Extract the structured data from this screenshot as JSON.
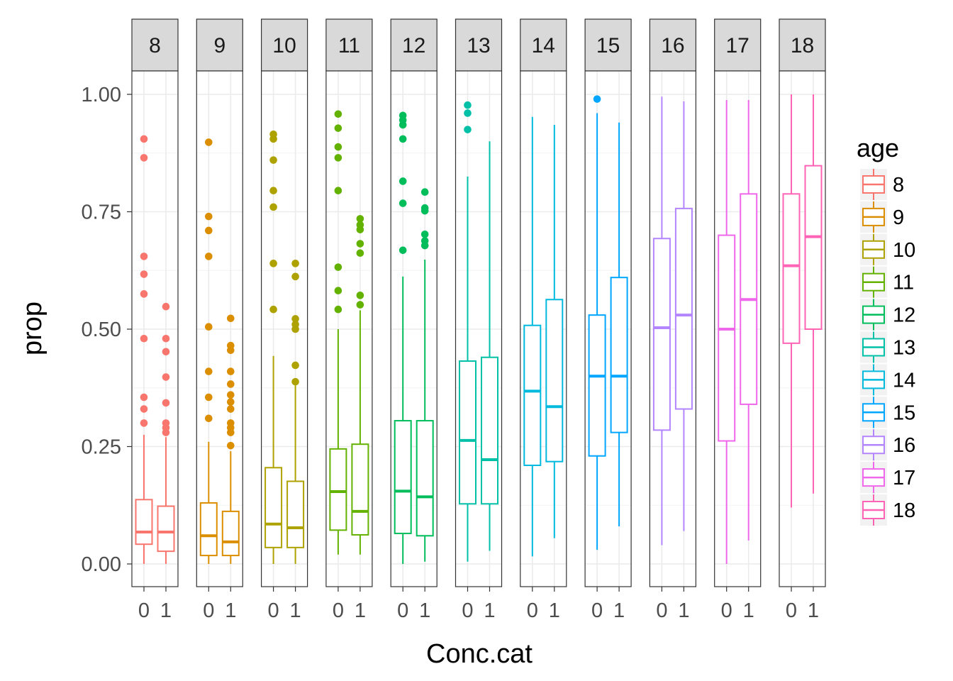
{
  "chart_data": {
    "type": "boxplot",
    "title": "",
    "xlabel": "Conc.cat",
    "ylabel": "prop",
    "ylim": [
      -0.04,
      1.05
    ],
    "y_ticks": [
      "0.00",
      "0.25",
      "0.50",
      "0.75",
      "1.00"
    ],
    "y_tick_values": [
      0,
      0.25,
      0.5,
      0.75,
      1.0
    ],
    "x_categories": [
      "0",
      "1"
    ],
    "grid": true,
    "legend": {
      "title": "age",
      "position": "right"
    },
    "facets": [
      {
        "label": "8",
        "color": "#F8766D",
        "boxes": [
          {
            "x": "0",
            "min": 0.0,
            "q1": 0.042,
            "median": 0.068,
            "q3": 0.137,
            "max": 0.275,
            "outliers": [
              0.3,
              0.33,
              0.355,
              0.48,
              0.575,
              0.617,
              0.655,
              0.865,
              0.905
            ]
          },
          {
            "x": "1",
            "min": 0.0,
            "q1": 0.027,
            "median": 0.068,
            "q3": 0.123,
            "max": 0.27,
            "outliers": [
              0.28,
              0.29,
              0.3,
              0.343,
              0.398,
              0.452,
              0.48,
              0.548
            ]
          }
        ]
      },
      {
        "label": "9",
        "color": "#DB8E00",
        "boxes": [
          {
            "x": "0",
            "min": 0.0,
            "q1": 0.018,
            "median": 0.06,
            "q3": 0.13,
            "max": 0.26,
            "outliers": [
              0.31,
              0.355,
              0.41,
              0.505,
              0.655,
              0.71,
              0.74,
              0.898
            ]
          },
          {
            "x": "1",
            "min": 0.0,
            "q1": 0.018,
            "median": 0.047,
            "q3": 0.112,
            "max": 0.24,
            "outliers": [
              0.252,
              0.28,
              0.29,
              0.3,
              0.33,
              0.345,
              0.36,
              0.383,
              0.41,
              0.455,
              0.465,
              0.523
            ]
          }
        ]
      },
      {
        "label": "10",
        "color": "#AEA200",
        "boxes": [
          {
            "x": "0",
            "min": 0.0,
            "q1": 0.035,
            "median": 0.085,
            "q3": 0.205,
            "max": 0.443,
            "outliers": [
              0.542,
              0.64,
              0.76,
              0.795,
              0.86,
              0.905,
              0.915
            ]
          },
          {
            "x": "1",
            "min": 0.0,
            "q1": 0.035,
            "median": 0.077,
            "q3": 0.176,
            "max": 0.38,
            "outliers": [
              0.388,
              0.423,
              0.5,
              0.51,
              0.522,
              0.612,
              0.64
            ]
          }
        ]
      },
      {
        "label": "11",
        "color": "#64B200",
        "boxes": [
          {
            "x": "0",
            "min": 0.02,
            "q1": 0.072,
            "median": 0.154,
            "q3": 0.245,
            "max": 0.5,
            "outliers": [
              0.542,
              0.582,
              0.632,
              0.795,
              0.865,
              0.888,
              0.928,
              0.958
            ]
          },
          {
            "x": "1",
            "min": 0.02,
            "q1": 0.062,
            "median": 0.112,
            "q3": 0.255,
            "max": 0.54,
            "outliers": [
              0.552,
              0.572,
              0.662,
              0.682,
              0.712,
              0.722,
              0.735
            ]
          }
        ]
      },
      {
        "label": "12",
        "color": "#00BD5C",
        "boxes": [
          {
            "x": "0",
            "min": 0.0,
            "q1": 0.065,
            "median": 0.155,
            "q3": 0.305,
            "max": 0.612,
            "outliers": [
              0.668,
              0.768,
              0.815,
              0.905,
              0.935,
              0.945,
              0.955
            ]
          },
          {
            "x": "1",
            "min": 0.005,
            "q1": 0.06,
            "median": 0.143,
            "q3": 0.305,
            "max": 0.648,
            "outliers": [
              0.678,
              0.688,
              0.702,
              0.752,
              0.758,
              0.792
            ]
          }
        ]
      },
      {
        "label": "13",
        "color": "#00C1A7",
        "boxes": [
          {
            "x": "0",
            "min": 0.005,
            "q1": 0.128,
            "median": 0.263,
            "q3": 0.432,
            "max": 0.825,
            "outliers": [
              0.925,
              0.96,
              0.977
            ]
          },
          {
            "x": "1",
            "min": 0.028,
            "q1": 0.128,
            "median": 0.222,
            "q3": 0.44,
            "max": 0.9,
            "outliers": []
          }
        ]
      },
      {
        "label": "14",
        "color": "#00BADE",
        "boxes": [
          {
            "x": "0",
            "min": 0.016,
            "q1": 0.21,
            "median": 0.368,
            "q3": 0.508,
            "max": 0.952,
            "outliers": []
          },
          {
            "x": "1",
            "min": 0.055,
            "q1": 0.218,
            "median": 0.335,
            "q3": 0.563,
            "max": 0.935,
            "outliers": []
          }
        ]
      },
      {
        "label": "15",
        "color": "#00A6FF",
        "boxes": [
          {
            "x": "0",
            "min": 0.03,
            "q1": 0.23,
            "median": 0.4,
            "q3": 0.53,
            "max": 0.96,
            "outliers": [
              0.99
            ]
          },
          {
            "x": "1",
            "min": 0.08,
            "q1": 0.28,
            "median": 0.4,
            "q3": 0.61,
            "max": 0.94,
            "outliers": []
          }
        ]
      },
      {
        "label": "16",
        "color": "#B385FF",
        "boxes": [
          {
            "x": "0",
            "min": 0.04,
            "q1": 0.285,
            "median": 0.503,
            "q3": 0.693,
            "max": 0.995,
            "outliers": []
          },
          {
            "x": "1",
            "min": 0.07,
            "q1": 0.33,
            "median": 0.53,
            "q3": 0.757,
            "max": 0.985,
            "outliers": []
          }
        ]
      },
      {
        "label": "17",
        "color": "#EF67EB",
        "boxes": [
          {
            "x": "0",
            "min": 0.0,
            "q1": 0.262,
            "median": 0.5,
            "q3": 0.7,
            "max": 0.988,
            "outliers": []
          },
          {
            "x": "1",
            "min": 0.05,
            "q1": 0.34,
            "median": 0.563,
            "q3": 0.788,
            "max": 0.988,
            "outliers": []
          }
        ]
      },
      {
        "label": "18",
        "color": "#FF63B6",
        "boxes": [
          {
            "x": "0",
            "min": 0.12,
            "q1": 0.47,
            "median": 0.635,
            "q3": 0.788,
            "max": 1.0,
            "outliers": []
          },
          {
            "x": "1",
            "min": 0.15,
            "q1": 0.5,
            "median": 0.697,
            "q3": 0.848,
            "max": 1.0,
            "outliers": []
          }
        ]
      }
    ]
  }
}
